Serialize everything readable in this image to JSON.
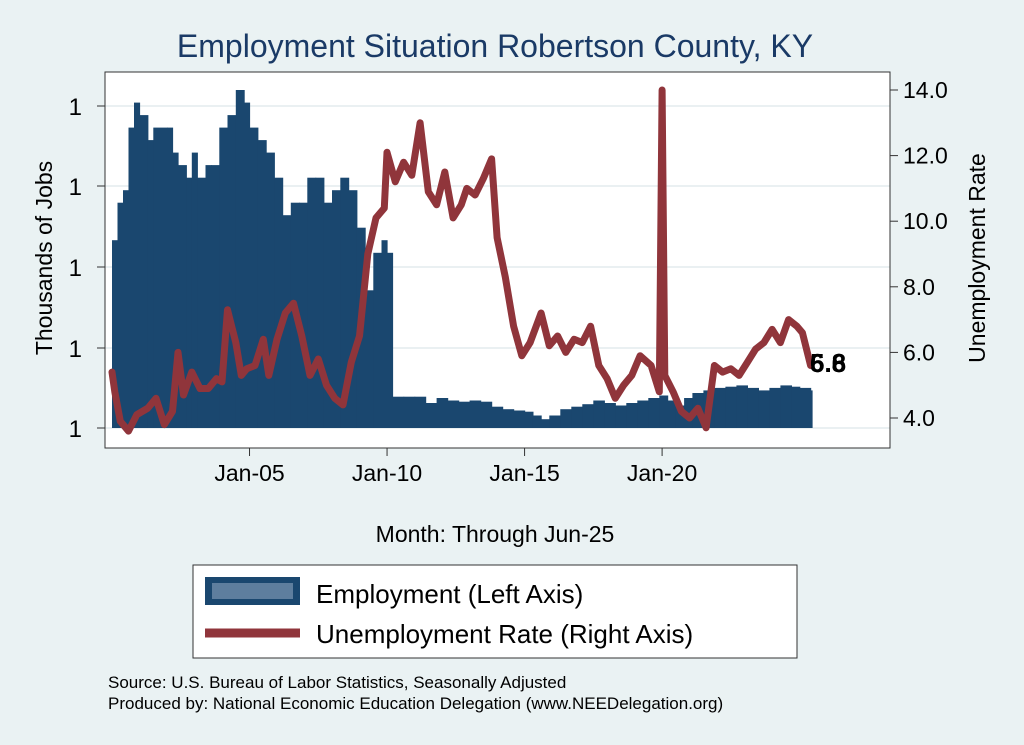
{
  "chart_data": {
    "type": "bar+line",
    "title": "Employment Situation Robertson  County, KY",
    "xlabel": "Month: Through Jun-25",
    "ylabel_left": "Thousands of Jobs",
    "ylabel_right": "Unemployment Rate",
    "x_range": [
      "Jan-00",
      "Jun-25"
    ],
    "x_ticks": [
      {
        "label": "Jan-05",
        "t": 2005.0
      },
      {
        "label": "Jan-10",
        "t": 2010.0
      },
      {
        "label": "Jan-15",
        "t": 2015.0
      },
      {
        "label": "Jan-20",
        "t": 2020.0
      }
    ],
    "y_left_ticks": [
      "1",
      "1",
      "1",
      "1",
      "1"
    ],
    "y_left_range": [
      0.69,
      0.98
    ],
    "y_right_ticks": [
      "4.0",
      "6.0",
      "8.0",
      "10.0",
      "12.0",
      "14.0"
    ],
    "y_right_range": [
      3.5,
      14.4
    ],
    "grid": true,
    "legend_position": "bottom",
    "series": [
      {
        "name": "Employment (Left Axis)",
        "type": "bar",
        "color": "#1a476f",
        "points": [
          [
            2000.0,
            0.84
          ],
          [
            2000.2,
            0.87
          ],
          [
            2000.4,
            0.88
          ],
          [
            2000.6,
            0.93
          ],
          [
            2000.8,
            0.95
          ],
          [
            2001.0,
            0.94
          ],
          [
            2001.3,
            0.92
          ],
          [
            2001.5,
            0.93
          ],
          [
            2002.0,
            0.93
          ],
          [
            2002.2,
            0.91
          ],
          [
            2002.4,
            0.9
          ],
          [
            2002.7,
            0.89
          ],
          [
            2002.9,
            0.91
          ],
          [
            2003.1,
            0.89
          ],
          [
            2003.4,
            0.9
          ],
          [
            2003.6,
            0.9
          ],
          [
            2003.9,
            0.93
          ],
          [
            2004.2,
            0.94
          ],
          [
            2004.5,
            0.96
          ],
          [
            2004.8,
            0.95
          ],
          [
            2005.0,
            0.93
          ],
          [
            2005.3,
            0.92
          ],
          [
            2005.6,
            0.91
          ],
          [
            2005.9,
            0.89
          ],
          [
            2006.2,
            0.86
          ],
          [
            2006.5,
            0.87
          ],
          [
            2006.8,
            0.87
          ],
          [
            2007.1,
            0.89
          ],
          [
            2007.4,
            0.89
          ],
          [
            2007.7,
            0.87
          ],
          [
            2008.0,
            0.88
          ],
          [
            2008.3,
            0.89
          ],
          [
            2008.6,
            0.88
          ],
          [
            2008.9,
            0.85
          ],
          [
            2009.2,
            0.8
          ],
          [
            2009.5,
            0.83
          ],
          [
            2009.8,
            0.84
          ],
          [
            2010.0,
            0.83
          ],
          [
            2010.2,
            0.715
          ],
          [
            2010.6,
            0.715
          ],
          [
            2011.0,
            0.715
          ],
          [
            2011.4,
            0.71
          ],
          [
            2011.8,
            0.714
          ],
          [
            2012.2,
            0.712
          ],
          [
            2012.6,
            0.711
          ],
          [
            2013.0,
            0.712
          ],
          [
            2013.4,
            0.711
          ],
          [
            2013.8,
            0.707
          ],
          [
            2014.2,
            0.705
          ],
          [
            2014.6,
            0.704
          ],
          [
            2015.0,
            0.703
          ],
          [
            2015.3,
            0.7
          ],
          [
            2015.6,
            0.697
          ],
          [
            2015.9,
            0.7
          ],
          [
            2016.3,
            0.705
          ],
          [
            2016.7,
            0.707
          ],
          [
            2017.1,
            0.709
          ],
          [
            2017.5,
            0.712
          ],
          [
            2017.9,
            0.71
          ],
          [
            2018.3,
            0.708
          ],
          [
            2018.7,
            0.71
          ],
          [
            2019.1,
            0.712
          ],
          [
            2019.5,
            0.714
          ],
          [
            2019.9,
            0.716
          ],
          [
            2020.2,
            0.712
          ],
          [
            2020.5,
            0.708
          ],
          [
            2020.8,
            0.714
          ],
          [
            2021.1,
            0.718
          ],
          [
            2021.5,
            0.72
          ],
          [
            2021.9,
            0.722
          ],
          [
            2022.3,
            0.723
          ],
          [
            2022.7,
            0.724
          ],
          [
            2023.1,
            0.722
          ],
          [
            2023.5,
            0.72
          ],
          [
            2023.9,
            0.722
          ],
          [
            2024.3,
            0.724
          ],
          [
            2024.7,
            0.723
          ],
          [
            2025.0,
            0.722
          ],
          [
            2025.4,
            0.72
          ]
        ]
      },
      {
        "name": "Unemployment Rate (Right Axis)",
        "type": "line",
        "color": "#90353b",
        "points": [
          [
            2000.0,
            5.4
          ],
          [
            2000.1,
            4.8
          ],
          [
            2000.3,
            3.9
          ],
          [
            2000.6,
            3.6
          ],
          [
            2000.9,
            4.1
          ],
          [
            2001.3,
            4.3
          ],
          [
            2001.6,
            4.6
          ],
          [
            2001.9,
            3.8
          ],
          [
            2002.2,
            4.2
          ],
          [
            2002.4,
            6.0
          ],
          [
            2002.6,
            4.7
          ],
          [
            2002.9,
            5.4
          ],
          [
            2003.2,
            4.9
          ],
          [
            2003.5,
            4.9
          ],
          [
            2003.8,
            5.2
          ],
          [
            2004.0,
            5.1
          ],
          [
            2004.2,
            7.3
          ],
          [
            2004.5,
            6.3
          ],
          [
            2004.7,
            5.3
          ],
          [
            2004.9,
            5.5
          ],
          [
            2005.2,
            5.6
          ],
          [
            2005.5,
            6.4
          ],
          [
            2005.7,
            5.3
          ],
          [
            2006.0,
            6.4
          ],
          [
            2006.3,
            7.2
          ],
          [
            2006.6,
            7.5
          ],
          [
            2006.9,
            6.5
          ],
          [
            2007.2,
            5.3
          ],
          [
            2007.5,
            5.8
          ],
          [
            2007.8,
            5.0
          ],
          [
            2008.1,
            4.6
          ],
          [
            2008.4,
            4.4
          ],
          [
            2008.7,
            5.7
          ],
          [
            2009.0,
            6.5
          ],
          [
            2009.3,
            9.0
          ],
          [
            2009.6,
            10.1
          ],
          [
            2009.9,
            10.4
          ],
          [
            2010.0,
            12.1
          ],
          [
            2010.3,
            11.2
          ],
          [
            2010.6,
            11.8
          ],
          [
            2010.9,
            11.4
          ],
          [
            2011.2,
            13.0
          ],
          [
            2011.5,
            10.9
          ],
          [
            2011.8,
            10.5
          ],
          [
            2012.1,
            11.5
          ],
          [
            2012.4,
            10.1
          ],
          [
            2012.7,
            10.5
          ],
          [
            2012.9,
            11.0
          ],
          [
            2013.2,
            10.8
          ],
          [
            2013.5,
            11.3
          ],
          [
            2013.8,
            11.9
          ],
          [
            2014.0,
            9.5
          ],
          [
            2014.3,
            8.3
          ],
          [
            2014.6,
            6.8
          ],
          [
            2014.9,
            5.9
          ],
          [
            2015.2,
            6.3
          ],
          [
            2015.6,
            7.2
          ],
          [
            2015.9,
            6.2
          ],
          [
            2016.2,
            6.5
          ],
          [
            2016.5,
            6.0
          ],
          [
            2016.8,
            6.4
          ],
          [
            2017.1,
            6.3
          ],
          [
            2017.4,
            6.8
          ],
          [
            2017.7,
            5.6
          ],
          [
            2018.0,
            5.2
          ],
          [
            2018.3,
            4.6
          ],
          [
            2018.6,
            5.0
          ],
          [
            2018.9,
            5.3
          ],
          [
            2019.2,
            5.9
          ],
          [
            2019.6,
            5.6
          ],
          [
            2019.9,
            4.8
          ],
          [
            2020.0,
            14.0
          ],
          [
            2020.1,
            5.3
          ],
          [
            2020.4,
            4.8
          ],
          [
            2020.7,
            4.2
          ],
          [
            2021.0,
            4.0
          ],
          [
            2021.3,
            4.3
          ],
          [
            2021.6,
            3.7
          ],
          [
            2021.9,
            5.6
          ],
          [
            2022.2,
            5.4
          ],
          [
            2022.5,
            5.5
          ],
          [
            2022.8,
            5.3
          ],
          [
            2023.1,
            5.7
          ],
          [
            2023.4,
            6.1
          ],
          [
            2023.7,
            6.3
          ],
          [
            2024.0,
            6.7
          ],
          [
            2024.3,
            6.3
          ],
          [
            2024.6,
            7.0
          ],
          [
            2024.9,
            6.8
          ],
          [
            2025.1,
            6.6
          ],
          [
            2025.4,
            5.6
          ]
        ]
      }
    ],
    "annotations": [
      {
        "text": "6.8"
      },
      {
        "text": "5.6"
      }
    ]
  },
  "source_text": "Source: U.S. Bureau of Labor Statistics, Seasonally Adjusted",
  "produced_text": "Produced by: National Economic Education Delegation (www.NEEDelegation.org)"
}
